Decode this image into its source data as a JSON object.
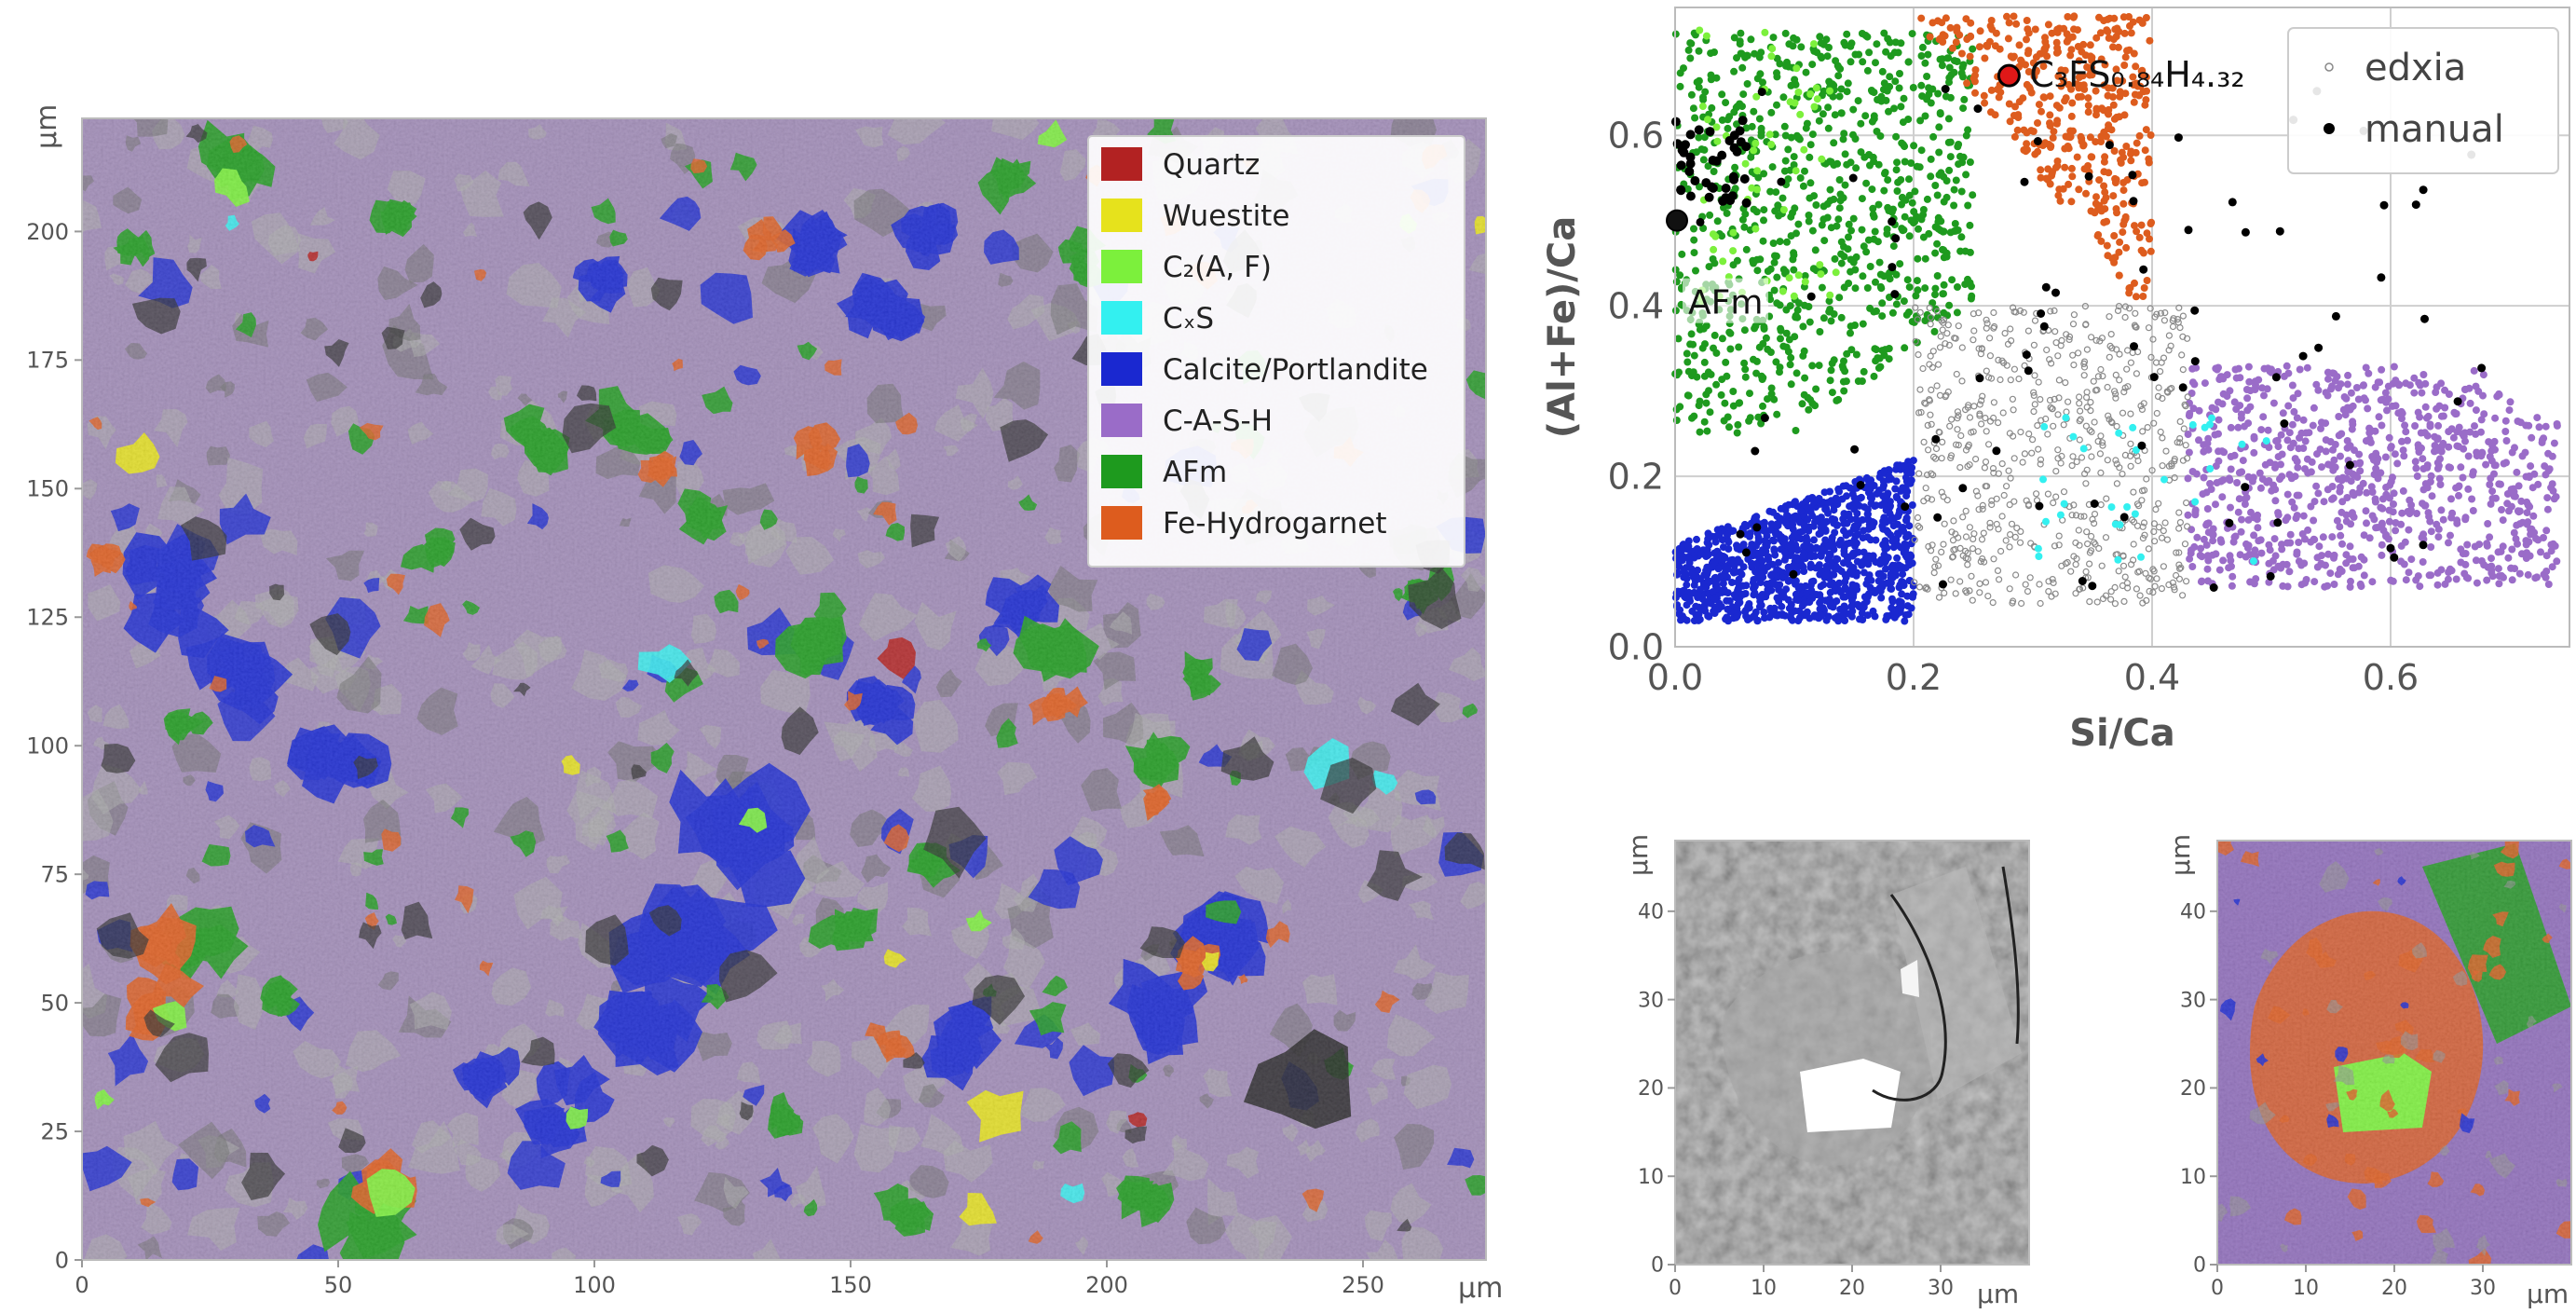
{
  "chart_data": [
    {
      "type": "heatmap",
      "panel": "phase-map",
      "xlabel": "µm",
      "ylabel": "µm",
      "xlim": [
        0,
        274
      ],
      "ylim": [
        0,
        222
      ],
      "xticks": [
        "0",
        "50",
        "100",
        "150",
        "200",
        "250"
      ],
      "yticks": [
        "0",
        "25",
        "50",
        "75",
        "100",
        "125",
        "150",
        "175",
        "200"
      ],
      "legend": {
        "placement": "top-right",
        "entries": [
          {
            "name": "Quartz",
            "color": "#b22222"
          },
          {
            "name": "Wuestite",
            "color": "#e6e21c"
          },
          {
            "name": "C₂(A, F)",
            "color": "#7cf03c"
          },
          {
            "name": "CₓS",
            "color": "#33f0f0"
          },
          {
            "name": "Calcite/Portlandite",
            "color": "#1a28d0"
          },
          {
            "name": "C-A-S-H",
            "color": "#9a6cc8"
          },
          {
            "name": "AFm",
            "color": "#1e9a1e"
          },
          {
            "name": "Fe-Hydrogarnet",
            "color": "#dd5c1e"
          }
        ]
      }
    },
    {
      "type": "scatter",
      "panel": "ratio-plot",
      "xlabel": "Si/Ca",
      "ylabel": "(Al+Fe)/Ca",
      "xlim": [
        0,
        0.75
      ],
      "ylim": [
        0,
        0.75
      ],
      "xticks": [
        "0.0",
        "0.2",
        "0.4",
        "0.6"
      ],
      "yticks": [
        "0.0",
        "0.2",
        "0.4",
        "0.6"
      ],
      "grid": true,
      "legend": {
        "placement": "top-right",
        "entries": [
          "edxia",
          "manual"
        ]
      },
      "annotations": [
        {
          "text": "C₃FS₀.₈₄H₄.₃₂",
          "x": 0.28,
          "y": 0.67
        },
        {
          "text": "AFm",
          "x": 0.0,
          "y": 0.5
        }
      ],
      "clusters": [
        {
          "phase": "AFm",
          "color": "#1e9a1e",
          "x_range": [
            0.0,
            0.25
          ],
          "y_range": [
            0.25,
            0.72
          ]
        },
        {
          "phase": "Fe-Hydrogarnet",
          "color": "#dd5c1e",
          "x_range": [
            0.2,
            0.4
          ],
          "y_range": [
            0.33,
            0.74
          ]
        },
        {
          "phase": "Calcite/Portlandite",
          "color": "#1a28d0",
          "x_range": [
            0.0,
            0.2
          ],
          "y_range": [
            0.03,
            0.26
          ]
        },
        {
          "phase": "C-A-S-H",
          "color": "#9a6cc8",
          "x_range": [
            0.43,
            0.74
          ],
          "y_range": [
            0.07,
            0.33
          ]
        },
        {
          "phase": "unassigned",
          "color": "#8a8a8a",
          "x_range": [
            0.2,
            0.43
          ],
          "y_range": [
            0.05,
            0.4
          ]
        }
      ]
    },
    {
      "type": "heatmap",
      "panel": "bse-zoom",
      "xlabel": "µm",
      "ylabel": "µm",
      "xlim": [
        0,
        40
      ],
      "ylim": [
        0,
        48
      ],
      "xticks": [
        "0",
        "10",
        "20",
        "30"
      ],
      "yticks": [
        "0",
        "10",
        "20",
        "30",
        "40"
      ]
    },
    {
      "type": "heatmap",
      "panel": "phase-zoom",
      "xlabel": "µm",
      "ylabel": "µm",
      "xlim": [
        0,
        40
      ],
      "ylim": [
        0,
        48
      ],
      "xticks": [
        "0",
        "10",
        "20",
        "30"
      ],
      "yticks": [
        "0",
        "10",
        "20",
        "30",
        "40"
      ]
    }
  ]
}
